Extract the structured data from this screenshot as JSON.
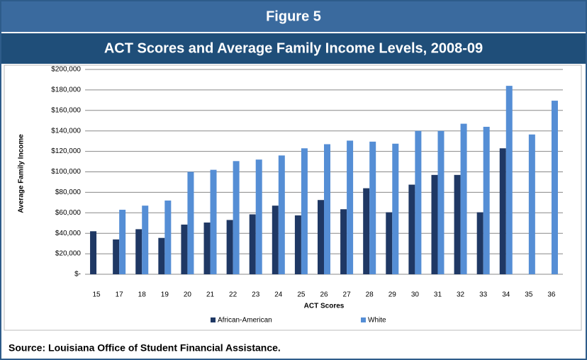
{
  "chart_data": {
    "type": "bar",
    "header": "Figure 5",
    "title": "ACT Scores and Average Family Income Levels, 2008-09",
    "x_label": "ACT Scores",
    "y_label": "Average Family Income",
    "source": "Source: Louisiana Office of Student Financial Assistance.",
    "categories": [
      "15",
      "17",
      "18",
      "19",
      "20",
      "21",
      "22",
      "23",
      "24",
      "25",
      "26",
      "27",
      "28",
      "29",
      "30",
      "31",
      "32",
      "33",
      "34",
      "35",
      "36"
    ],
    "series": [
      {
        "name": "African-American",
        "color": "#1f3864",
        "values": [
          42000,
          34000,
          44000,
          35500,
          48500,
          50500,
          53000,
          58500,
          67000,
          57500,
          72500,
          63500,
          84000,
          60500,
          87500,
          97000,
          97000,
          60500,
          123000,
          null,
          null
        ]
      },
      {
        "name": "White",
        "color": "#558ed5",
        "values": [
          null,
          63000,
          67000,
          72000,
          100000,
          102000,
          110500,
          112000,
          116000,
          123000,
          127000,
          130500,
          129500,
          127500,
          140000,
          140000,
          147000,
          144000,
          184000,
          136500,
          169500
        ]
      }
    ],
    "ylim": [
      0,
      200000
    ],
    "yticks": [
      {
        "value": 0,
        "label": "$-"
      },
      {
        "value": 20000,
        "label": "$20,000"
      },
      {
        "value": 40000,
        "label": "$40,000"
      },
      {
        "value": 60000,
        "label": "$60,000"
      },
      {
        "value": 80000,
        "label": "$80,000"
      },
      {
        "value": 100000,
        "label": "$100,000"
      },
      {
        "value": 120000,
        "label": "$120,000"
      },
      {
        "value": 140000,
        "label": "$140,000"
      },
      {
        "value": 160000,
        "label": "$160,000"
      },
      {
        "value": 180000,
        "label": "$180,000"
      },
      {
        "value": 200000,
        "label": "$200,000"
      }
    ],
    "grid": true,
    "legend": "bottom"
  }
}
